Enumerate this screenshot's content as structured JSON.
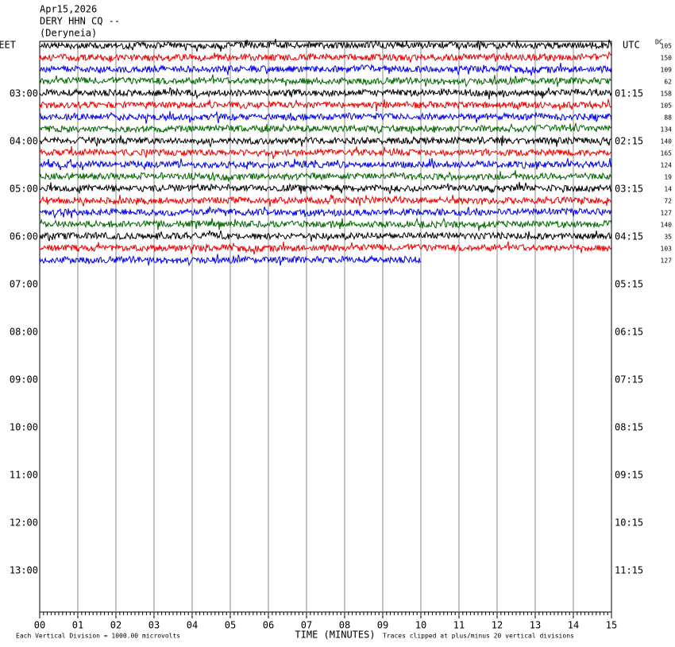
{
  "header": {
    "date": "Apr15,2026",
    "station": "DERY HHN CQ --",
    "location": "(Deryneia)"
  },
  "left_axis": {
    "title": "EET",
    "labels": [
      "03:00",
      "04:00",
      "05:00",
      "06:00",
      "07:00",
      "08:00",
      "09:00",
      "10:00",
      "11:00",
      "12:00",
      "13:00"
    ]
  },
  "right_axis": {
    "title": "UTC",
    "labels": [
      "01:15",
      "02:15",
      "03:15",
      "04:15",
      "05:15",
      "06:15",
      "07:15",
      "08:15",
      "09:15",
      "10:15",
      "11:15"
    ]
  },
  "dc_title": "DC",
  "dc_offsets": [
    105,
    150,
    109,
    62,
    158,
    105,
    88,
    134,
    140,
    165,
    124,
    19,
    14,
    72,
    127,
    140,
    35,
    103,
    127
  ],
  "x_axis": {
    "ticks": [
      "00",
      "01",
      "02",
      "03",
      "04",
      "05",
      "06",
      "07",
      "08",
      "09",
      "10",
      "11",
      "12",
      "13",
      "14",
      "15"
    ],
    "title": "TIME (MINUTES)"
  },
  "footer": {
    "scale_note": "Each Vertical Division = 1000.00 microvolts",
    "clip_note": "Traces clipped at plus/minus 20 vertical divisions"
  }
}
